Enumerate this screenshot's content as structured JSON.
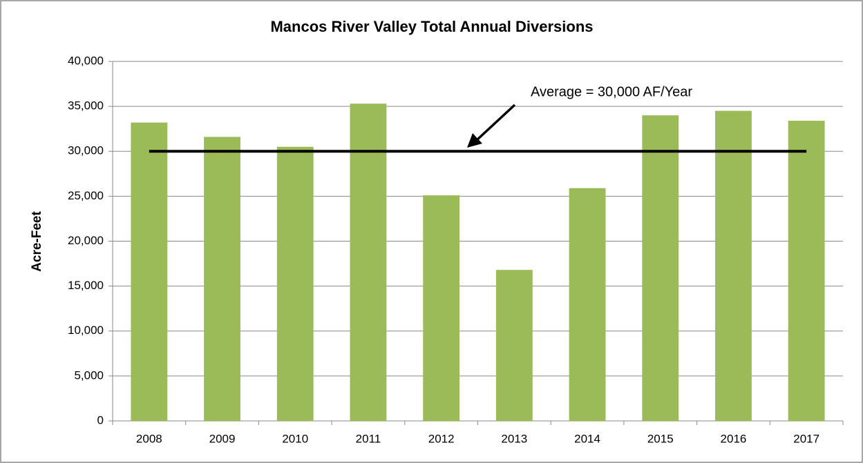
{
  "chart_data": {
    "type": "bar",
    "title": "Mancos River Valley Total Annual Diversions",
    "y_label": "Acre-Feet",
    "categories": [
      "2008",
      "2009",
      "2010",
      "2011",
      "2012",
      "2013",
      "2014",
      "2015",
      "2016",
      "2017"
    ],
    "values": [
      33200,
      31600,
      30500,
      35300,
      25100,
      16800,
      25900,
      34000,
      34500,
      33400
    ],
    "color": "#9bbb59",
    "ylim": [
      0,
      40000
    ],
    "yticks": [
      0,
      {
        "value": 5000,
        "label": "5,000"
      },
      {
        "value": 10000,
        "label": "10,000"
      },
      {
        "value": 15000,
        "label": "15,000"
      },
      {
        "value": 20000,
        "label": "20,000"
      },
      {
        "value": 25000,
        "label": "25,000"
      },
      {
        "value": 30000,
        "label": "30,000"
      },
      {
        "value": 35000,
        "label": "35,000"
      },
      {
        "value": 40000,
        "label": "40,000"
      }
    ],
    "grid": true,
    "average": 30000,
    "annotation": "Average = 30,000 AF/Year"
  }
}
